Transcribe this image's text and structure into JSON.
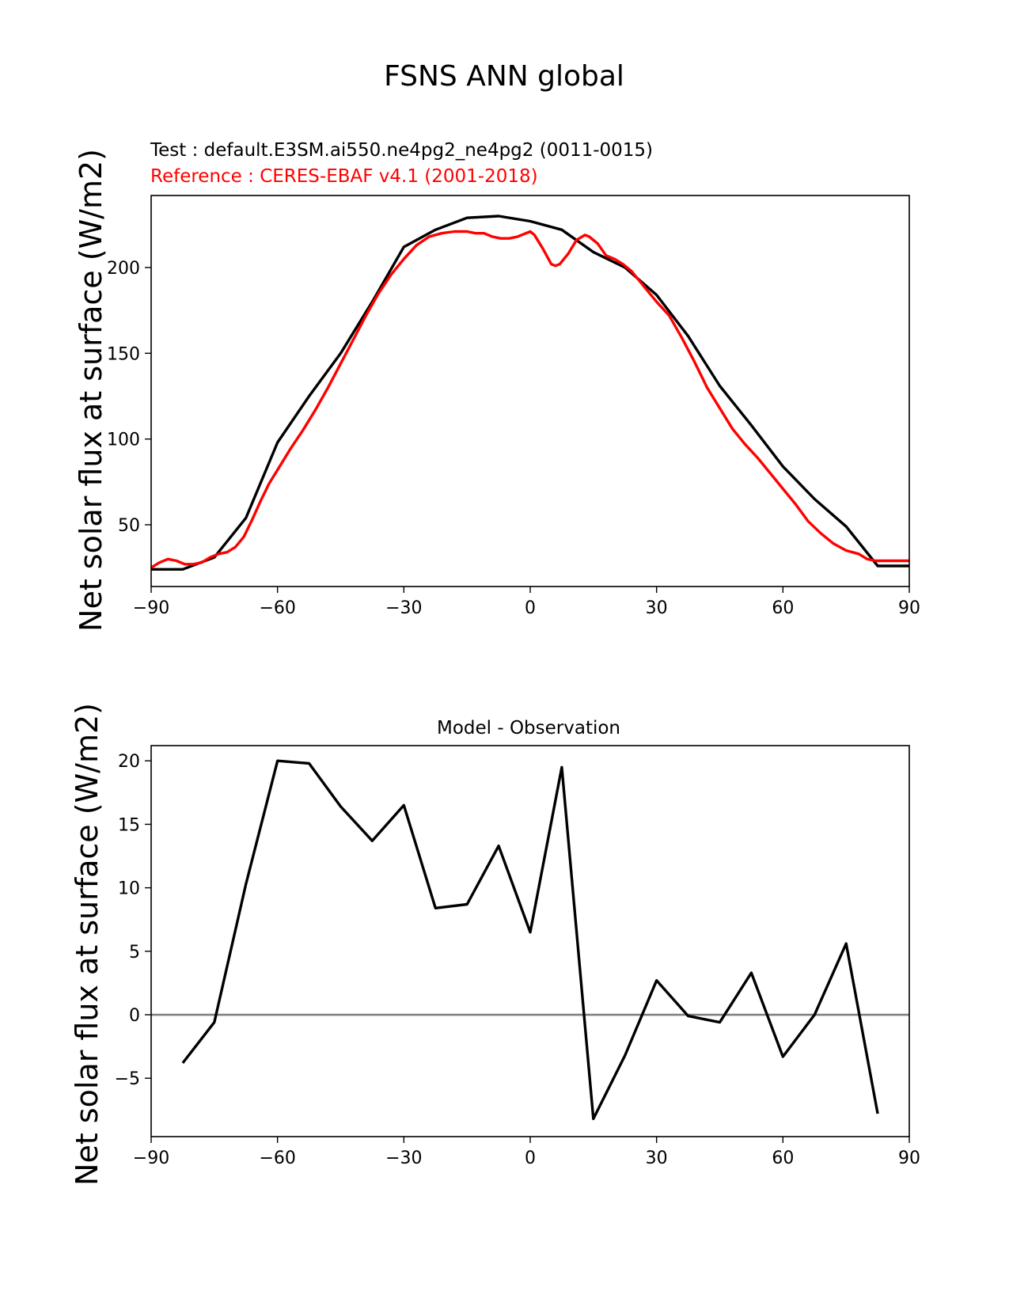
{
  "title": "FSNS ANN global",
  "chart_data": [
    {
      "type": "line",
      "test_label": "Test : default.E3SM.ai550.ne4pg2_ne4pg2 (0011-0015)",
      "reference_label": "Reference : CERES-EBAF v4.1 (2001-2018)",
      "title": "",
      "xlabel": "",
      "ylabel": "Net solar flux at surface (W/m2)",
      "xlim": [
        -90,
        90
      ],
      "ylim": [
        14,
        242
      ],
      "xticks": [
        "−90",
        "−60",
        "−30",
        "0",
        "30",
        "60",
        "90"
      ],
      "xtick_values": [
        -90,
        -60,
        -30,
        0,
        30,
        60,
        90
      ],
      "yticks": [
        "50",
        "100",
        "150",
        "200"
      ],
      "ytick_values": [
        50,
        100,
        150,
        200
      ],
      "series": [
        {
          "color": "#000000",
          "x": [
            -90,
            -82.5,
            -75,
            -67.5,
            -60,
            -52.5,
            -45,
            -37.5,
            -30,
            -22.5,
            -15,
            -7.5,
            0,
            7.5,
            15,
            22.5,
            30,
            37.5,
            45,
            52.5,
            60,
            67.5,
            75,
            82.5,
            90
          ],
          "y": [
            24,
            24,
            31,
            54,
            98,
            125,
            150,
            180,
            212,
            222,
            229,
            230,
            227,
            222,
            209,
            200,
            184,
            160,
            131,
            108,
            84,
            65,
            49,
            26,
            26
          ]
        },
        {
          "color": "#ff0000",
          "x": [
            -90,
            -88,
            -86,
            -84,
            -82,
            -80,
            -78,
            -76,
            -74,
            -72,
            -70,
            -68,
            -66,
            -64,
            -62,
            -60,
            -57,
            -54,
            -51,
            -48,
            -45,
            -42,
            -39,
            -36,
            -33,
            -30,
            -27,
            -24,
            -21,
            -18,
            -15,
            -13,
            -11,
            -9,
            -7,
            -5,
            -3,
            -1,
            0,
            1,
            3,
            5,
            6,
            7,
            9,
            11,
            13,
            14,
            16,
            18,
            20,
            22,
            24,
            26,
            28,
            30,
            33,
            36,
            39,
            42,
            45,
            48,
            51,
            54,
            57,
            60,
            63,
            66,
            69,
            72,
            75,
            78,
            80,
            82,
            84,
            86,
            88,
            90
          ],
          "y": [
            25,
            28,
            30,
            29,
            27,
            27,
            28,
            31,
            33,
            34,
            37,
            43,
            53,
            64,
            74,
            82,
            94,
            105,
            117,
            130,
            144,
            158,
            172,
            185,
            196,
            205,
            213,
            218,
            220,
            221,
            221,
            220,
            220,
            218,
            217,
            217,
            218,
            220,
            221,
            219,
            211,
            202,
            201,
            202,
            208,
            216,
            219,
            218,
            214,
            207,
            205,
            202,
            198,
            192,
            186,
            180,
            172,
            159,
            145,
            130,
            118,
            106,
            97,
            89,
            80,
            71,
            62,
            52,
            45,
            39,
            35,
            33,
            30,
            29,
            29,
            29,
            29,
            29
          ]
        }
      ]
    },
    {
      "type": "line",
      "title": "Model - Observation",
      "xlabel": "",
      "ylabel": "Net solar flux at surface (W/m2)",
      "xlim": [
        -90,
        90
      ],
      "ylim": [
        -9.6,
        21.2
      ],
      "xticks": [
        "−90",
        "−60",
        "−30",
        "0",
        "30",
        "60",
        "90"
      ],
      "xtick_values": [
        -90,
        -60,
        -30,
        0,
        30,
        60,
        90
      ],
      "yticks": [
        "−5",
        "0",
        "5",
        "10",
        "15",
        "20"
      ],
      "ytick_values": [
        -5,
        0,
        5,
        10,
        15,
        20
      ],
      "zero_line_color": "#808080",
      "series": [
        {
          "color": "#000000",
          "x": [
            -82.5,
            -75,
            -67.5,
            -60,
            -52.5,
            -45,
            -37.5,
            -30,
            -22.5,
            -15,
            -7.5,
            0,
            7.5,
            15,
            22.5,
            30,
            37.5,
            45,
            52.5,
            60,
            67.5,
            75,
            82.5
          ],
          "y": [
            -3.8,
            -0.6,
            10.3,
            20.0,
            19.8,
            16.4,
            13.7,
            16.5,
            8.4,
            8.7,
            13.3,
            6.5,
            19.5,
            -8.2,
            -3.2,
            2.7,
            -0.1,
            -0.6,
            3.3,
            -3.3,
            0.0,
            5.6,
            -7.8
          ]
        }
      ]
    }
  ]
}
